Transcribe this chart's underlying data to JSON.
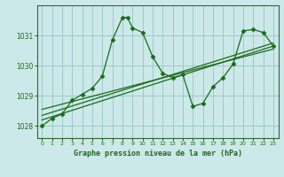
{
  "title": "Graphe pression niveau de la mer (hPa)",
  "xlim": [
    -0.5,
    23.5
  ],
  "ylim": [
    1027.6,
    1032.0
  ],
  "yticks": [
    1028,
    1029,
    1030,
    1031
  ],
  "xticks": [
    0,
    1,
    2,
    3,
    4,
    5,
    6,
    7,
    8,
    9,
    10,
    11,
    12,
    13,
    14,
    15,
    16,
    17,
    18,
    19,
    20,
    21,
    22,
    23
  ],
  "bg_color": "#cce8e8",
  "grid_color": "#99cccc",
  "line_color": "#1a6b1a",
  "text_color": "#1a6b1a",
  "main_series_x": [
    0,
    1,
    2,
    3,
    4,
    5,
    6,
    7,
    8,
    8.5,
    9,
    10,
    11,
    12,
    13,
    14,
    15,
    16,
    17,
    18,
    19,
    20,
    21,
    22,
    23
  ],
  "main_series_y": [
    1028.0,
    1028.25,
    1028.4,
    1028.85,
    1029.05,
    1029.25,
    1029.65,
    1030.85,
    1031.6,
    1031.6,
    1031.25,
    1031.1,
    1030.3,
    1029.75,
    1029.6,
    1029.7,
    1028.65,
    1028.75,
    1029.3,
    1029.6,
    1030.05,
    1031.15,
    1031.2,
    1031.1,
    1030.65
  ],
  "trend1_x": [
    0,
    23
  ],
  "trend1_y": [
    1028.55,
    1030.55
  ],
  "trend2_x": [
    0,
    23
  ],
  "trend2_y": [
    1028.35,
    1030.75
  ],
  "trend3_x": [
    0,
    23
  ],
  "trend3_y": [
    1028.2,
    1030.65
  ]
}
